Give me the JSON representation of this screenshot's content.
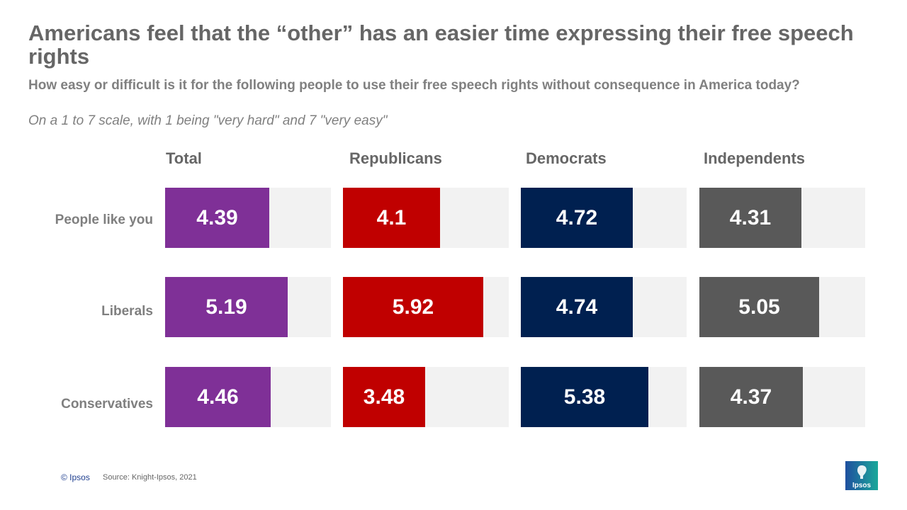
{
  "title": "Americans feel that the “other” has an easier time expressing their free speech rights",
  "subtitle": "How easy or difficult is it for the following  people to use their free speech rights without consequence in America today?",
  "note": "On a 1 to 7 scale, with 1 being \"very hard\" and 7 \"very easy\"",
  "footer": {
    "copyright": "© Ipsos",
    "source": "Source: Knight-Ipsos, 2021",
    "logo_text": "Ipsos"
  },
  "chart_data": {
    "type": "bar",
    "orientation": "horizontal",
    "title": "Americans feel that the “other” has an easier time expressing their free speech rights",
    "categories": [
      "People like you",
      "Liberals",
      "Conservatives"
    ],
    "scale": [
      0,
      7
    ],
    "series": [
      {
        "name": "Total",
        "color": "#7f3097",
        "values": [
          4.39,
          5.19,
          4.46
        ],
        "labels": [
          "4.39",
          "5.19",
          "4.46"
        ]
      },
      {
        "name": "Republicans",
        "color": "#c00000",
        "values": [
          4.1,
          5.92,
          3.48
        ],
        "labels": [
          "4.1",
          "5.92",
          "3.48"
        ]
      },
      {
        "name": "Democrats",
        "color": "#002050",
        "values": [
          4.72,
          4.74,
          5.38
        ],
        "labels": [
          "4.72",
          "4.74",
          "5.38"
        ]
      },
      {
        "name": "Independents",
        "color": "#595959",
        "values": [
          4.31,
          5.05,
          4.37
        ],
        "labels": [
          "4.31",
          "5.05",
          "4.37"
        ]
      }
    ],
    "track_color": "#f2f2f2"
  }
}
